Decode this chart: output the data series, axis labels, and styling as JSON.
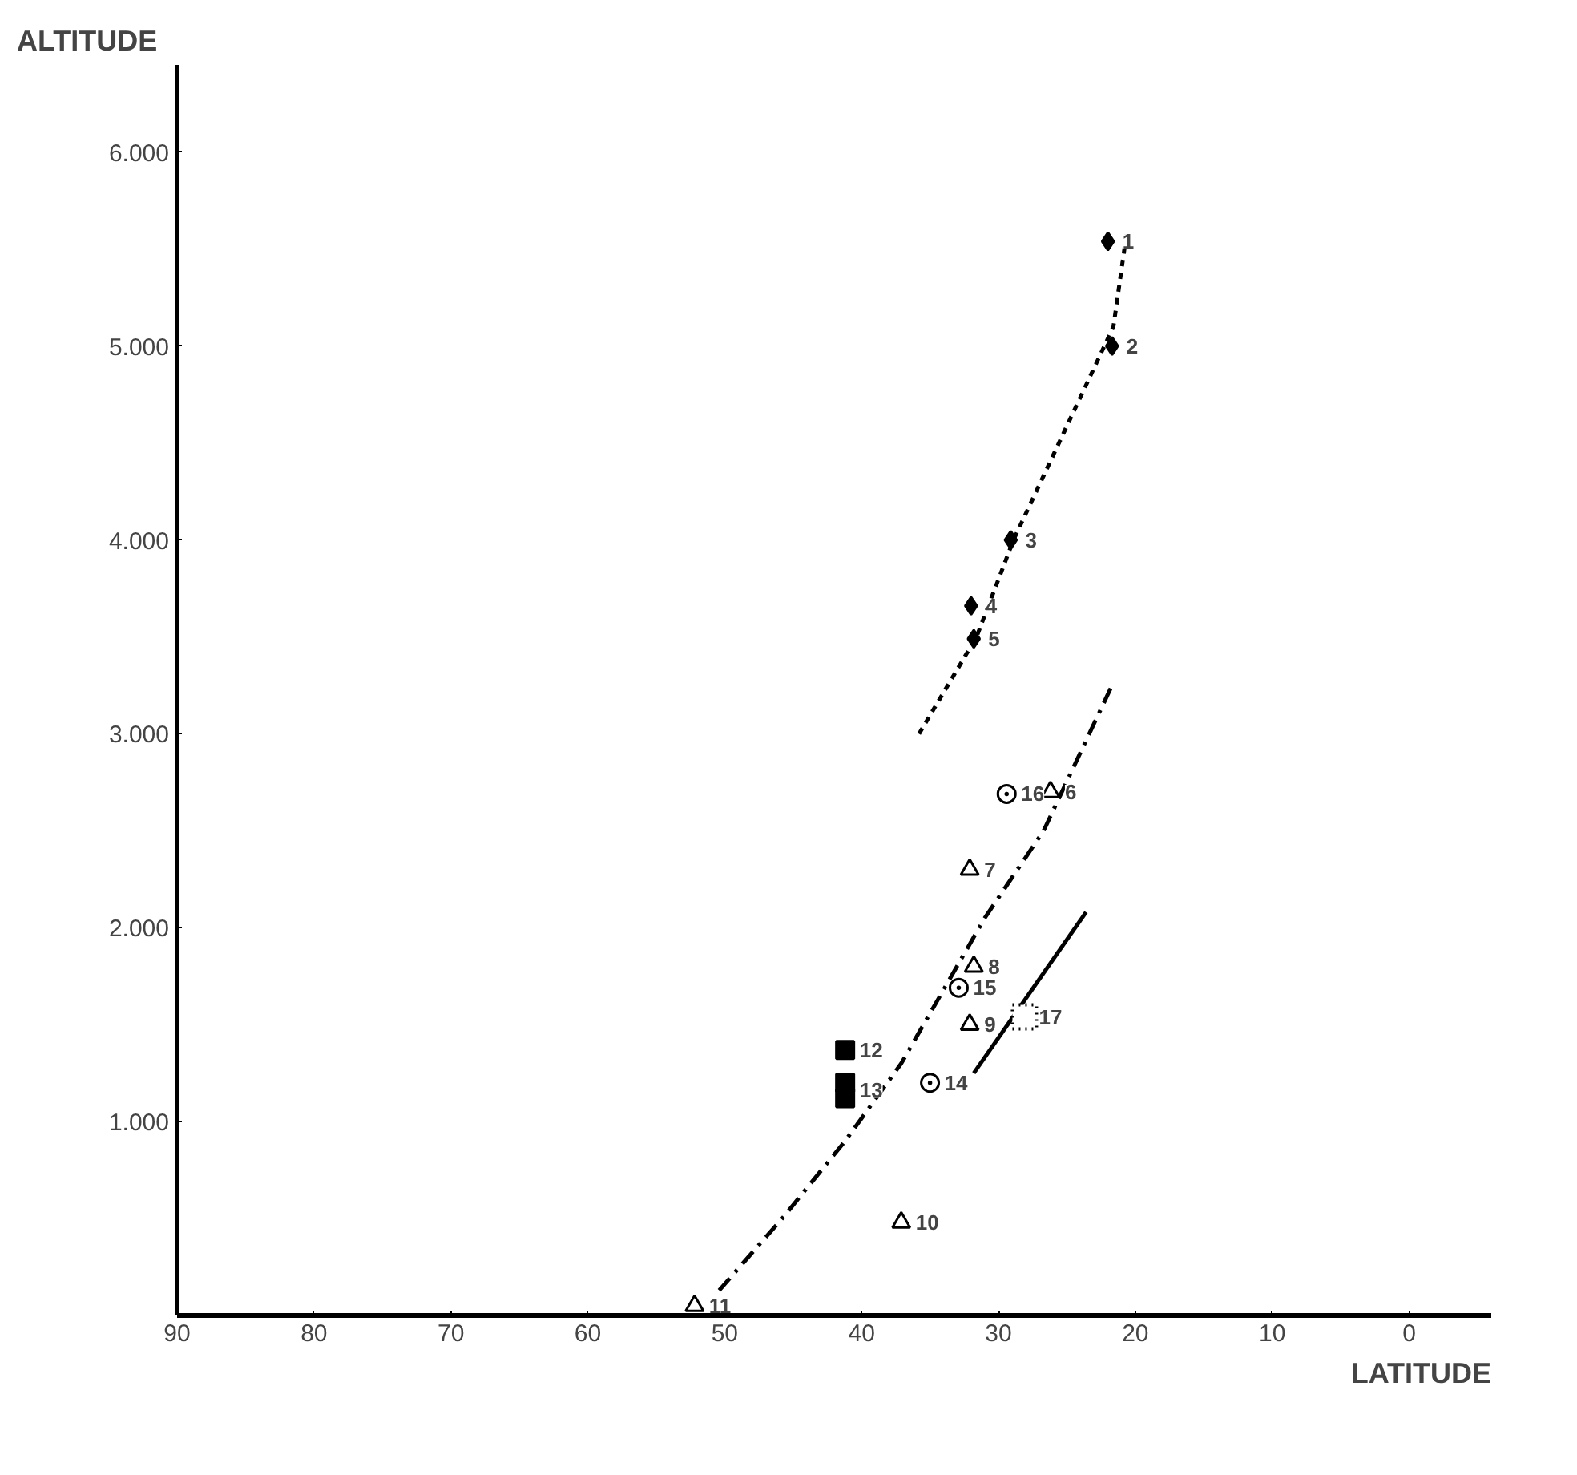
{
  "chart_data": {
    "type": "scatter",
    "xlabel": "LATITUDE",
    "ylabel": "ALTITUDE",
    "xlim": [
      90,
      -6
    ],
    "ylim": [
      0,
      6450
    ],
    "xticks": [
      90,
      80,
      70,
      60,
      50,
      40,
      30,
      20,
      10,
      0
    ],
    "yticks": [
      {
        "value": 1000,
        "label": "1.000"
      },
      {
        "value": 2000,
        "label": "2.000"
      },
      {
        "value": 3000,
        "label": "3.000"
      },
      {
        "value": 4000,
        "label": "4.000"
      },
      {
        "value": 5000,
        "label": "5.000"
      },
      {
        "value": 6000,
        "label": "6.000"
      }
    ],
    "grid": false,
    "series": [
      {
        "type": "line",
        "color": "#000000",
        "line_style": "dashed",
        "x": [
          35.8,
          31.6,
          28.9,
          21.6,
          20.6
        ],
        "values": [
          3000,
          3500,
          4000,
          5100,
          5600
        ]
      },
      {
        "type": "line",
        "color": "#000000",
        "line_style": "dashdot",
        "x": [
          50.4,
          45.8,
          41.2,
          37.1,
          31.0,
          26.7,
          21.7
        ],
        "values": [
          130,
          500,
          900,
          1300,
          2050,
          2500,
          3250
        ]
      },
      {
        "type": "line",
        "color": "#000000",
        "line_style": "solid",
        "x": [
          31.8,
          23.6
        ],
        "values": [
          1250,
          2080
        ]
      },
      {
        "color": "#000000",
        "marker": "diamond",
        "x": [
          22.0,
          21.7,
          29.1,
          32.0,
          31.8
        ],
        "values": [
          5540,
          5000,
          4000,
          3660,
          3490
        ]
      },
      {
        "color": "#000000",
        "marker": "triangle",
        "x": [
          26.2,
          32.1,
          31.8,
          32.1,
          37.1,
          52.2
        ],
        "values": [
          2700,
          2300,
          1800,
          1500,
          480,
          50
        ]
      },
      {
        "color": "#000000",
        "marker": "square",
        "x": [
          41.2,
          41.2,
          41.2
        ],
        "values": [
          1370,
          1200,
          1120
        ]
      },
      {
        "color": "#000000",
        "marker": "circle",
        "x": [
          35.0,
          32.9,
          29.4
        ],
        "values": [
          1200,
          1690,
          2690
        ]
      },
      {
        "color": "#000000",
        "marker": "square",
        "line_style": "dotted",
        "x": [
          28.1
        ],
        "values": [
          1540
        ]
      }
    ],
    "annotations": [
      {
        "text": "1",
        "x": 22.0,
        "y": 5540
      },
      {
        "text": "2",
        "x": 21.7,
        "y": 5000
      },
      {
        "text": "3",
        "x": 29.1,
        "y": 4000
      },
      {
        "text": "4",
        "x": 32.0,
        "y": 3660
      },
      {
        "text": "5",
        "x": 31.8,
        "y": 3490
      },
      {
        "text": "6",
        "x": 26.2,
        "y": 2700
      },
      {
        "text": "7",
        "x": 32.1,
        "y": 2300
      },
      {
        "text": "8",
        "x": 31.8,
        "y": 1800
      },
      {
        "text": "9",
        "x": 32.1,
        "y": 1500
      },
      {
        "text": "10",
        "x": 37.1,
        "y": 480
      },
      {
        "text": "11",
        "x": 52.2,
        "y": 50
      },
      {
        "text": "12",
        "x": 41.2,
        "y": 1370
      },
      {
        "text": "13",
        "x": 41.2,
        "y": 1160
      },
      {
        "text": "14",
        "x": 35.0,
        "y": 1200
      },
      {
        "text": "15",
        "x": 32.9,
        "y": 1690
      },
      {
        "text": "16",
        "x": 29.4,
        "y": 2690
      },
      {
        "text": "17",
        "x": 28.1,
        "y": 1540
      }
    ]
  }
}
